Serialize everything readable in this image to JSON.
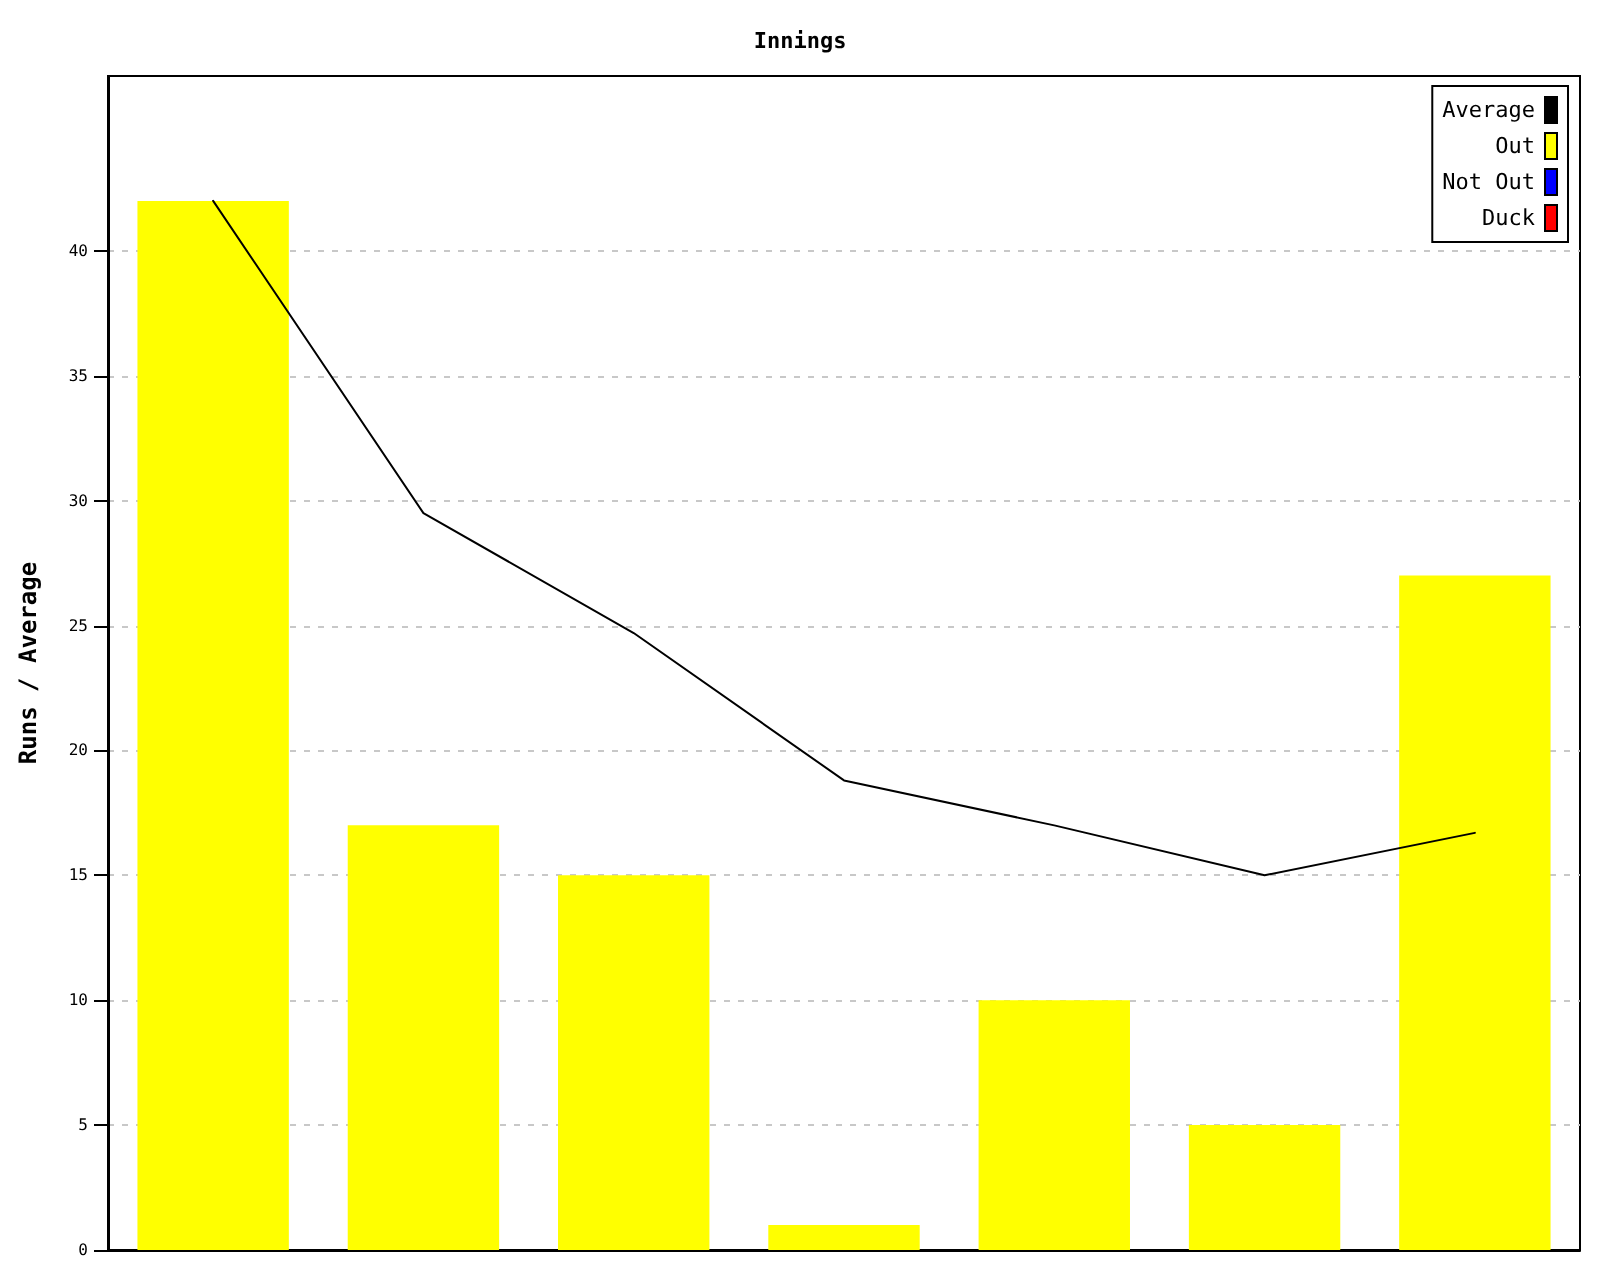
{
  "chart_data": {
    "type": "bar",
    "title": "Innings",
    "ylabel": "Runs / Average",
    "categories": [
      null,
      null,
      null,
      null,
      null,
      null,
      null
    ],
    "series": [
      {
        "name": "Average",
        "type": "line",
        "color": "#000000",
        "values": [
          42,
          29.5,
          24.7,
          18.8,
          17,
          15,
          16.7
        ]
      },
      {
        "name": "Out",
        "color": "#ffff00",
        "values": [
          42,
          17,
          15,
          1,
          10,
          5,
          27
        ]
      },
      {
        "name": "Not Out",
        "color": "#0000ff",
        "values": [
          null,
          null,
          null,
          null,
          null,
          null,
          null
        ]
      },
      {
        "name": "Duck",
        "color": "#ff0000",
        "values": [
          null,
          null,
          null,
          null,
          null,
          null,
          null
        ]
      }
    ],
    "ylim": [
      0,
      47
    ],
    "yticks": [
      0,
      5,
      10,
      15,
      20,
      25,
      30,
      35,
      40
    ],
    "grid": "y",
    "legend": "top right",
    "marker": "none"
  }
}
